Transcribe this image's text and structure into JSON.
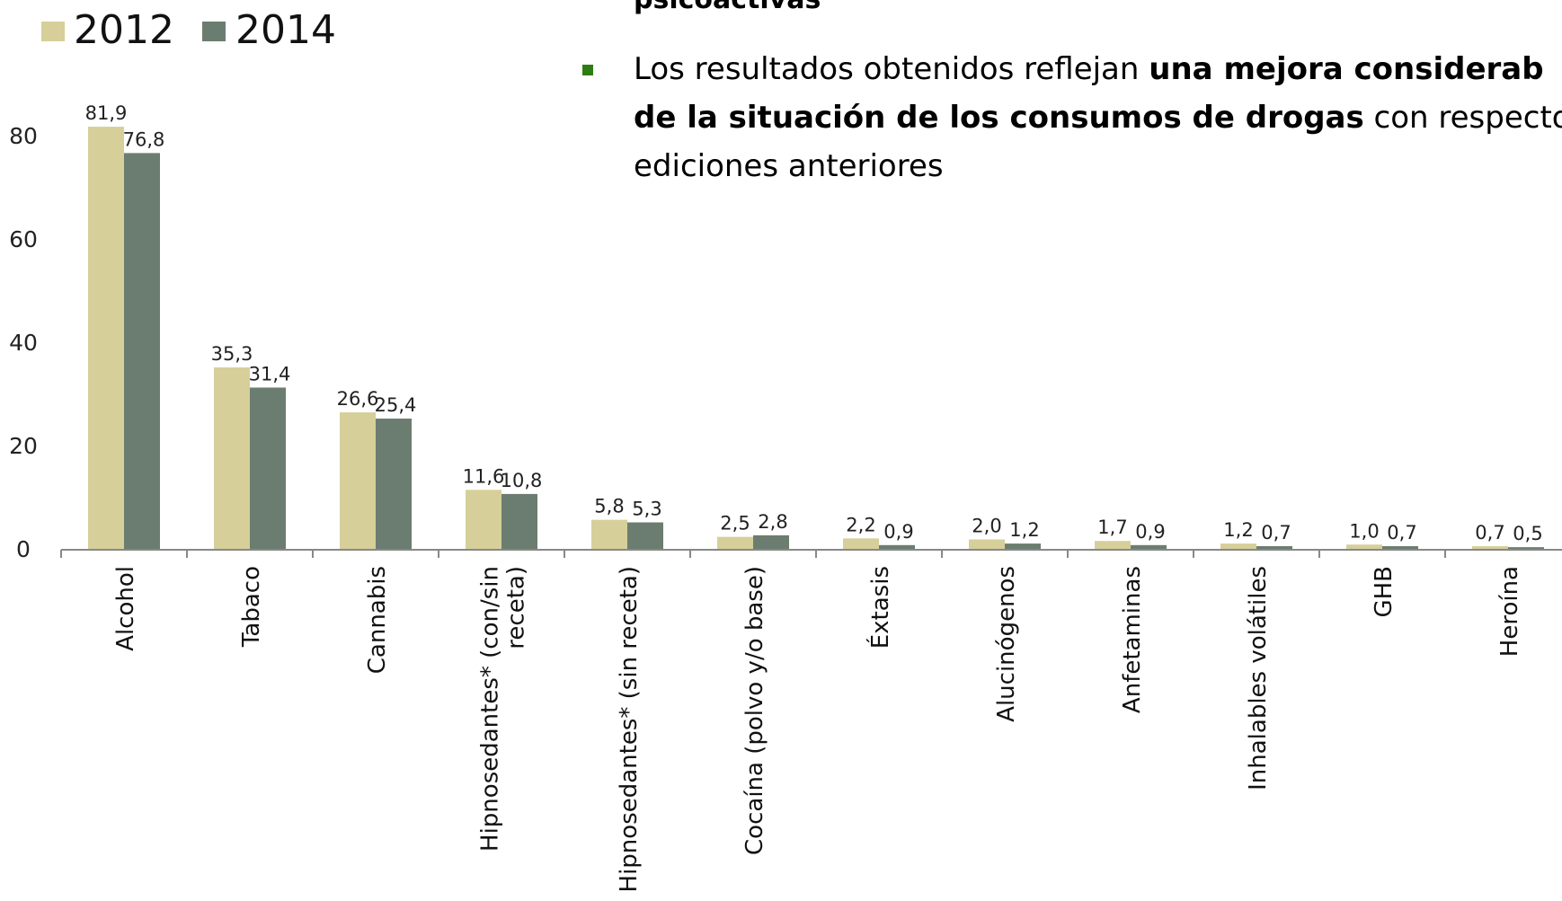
{
  "text_panel": {
    "heading_fragment": "psicoactivas",
    "bullet": {
      "line1_normal": "Los resultados obtenidos reflejan ",
      "line1_bold": "una mejora considerab",
      "line2_bold": "de la situación de los consumos de drogas",
      "line2_normal": " con respecto",
      "line3_normal": "ediciones anteriores"
    },
    "bullet_color": "#2e7d12"
  },
  "chart_data": {
    "type": "bar",
    "title": "",
    "xlabel": "",
    "ylabel": "",
    "ylim": [
      0,
      80
    ],
    "yticks": [
      0,
      20,
      40,
      60,
      80
    ],
    "grid": false,
    "legend_position": "top-left",
    "categories": [
      "Alcohol",
      "Tabaco",
      "Cannabis",
      [
        "Hipnosedantes* (con/sin",
        "receta)"
      ],
      "Hipnosedantes* (sin receta)",
      "Cocaína (polvo y/o base)",
      "Éxtasis",
      "Alucinógenos",
      "Anfetaminas",
      "Inhalables volátiles",
      "GHB",
      "Heroína"
    ],
    "series": [
      {
        "name": "2012",
        "color": "#d6cf9a",
        "values": [
          81.9,
          35.3,
          26.6,
          11.6,
          5.8,
          2.5,
          2.2,
          2.0,
          1.7,
          1.2,
          1.0,
          0.7
        ],
        "labels": [
          "81,9",
          "35,3",
          "26,6",
          "11,6",
          "5,8",
          "2,5",
          "2,2",
          "2,0",
          "1,7",
          "1,2",
          "1,0",
          "0,7"
        ]
      },
      {
        "name": "2014",
        "color": "#6b7d70",
        "values": [
          76.8,
          31.4,
          25.4,
          10.8,
          5.3,
          2.8,
          0.9,
          1.2,
          0.9,
          0.7,
          0.7,
          0.5
        ],
        "labels": [
          "76,8",
          "31,4",
          "25,4",
          "10,8",
          "5,3",
          "2,8",
          "0,9",
          "1,2",
          "0,9",
          "0,7",
          "0,7",
          "0,5"
        ]
      }
    ]
  }
}
